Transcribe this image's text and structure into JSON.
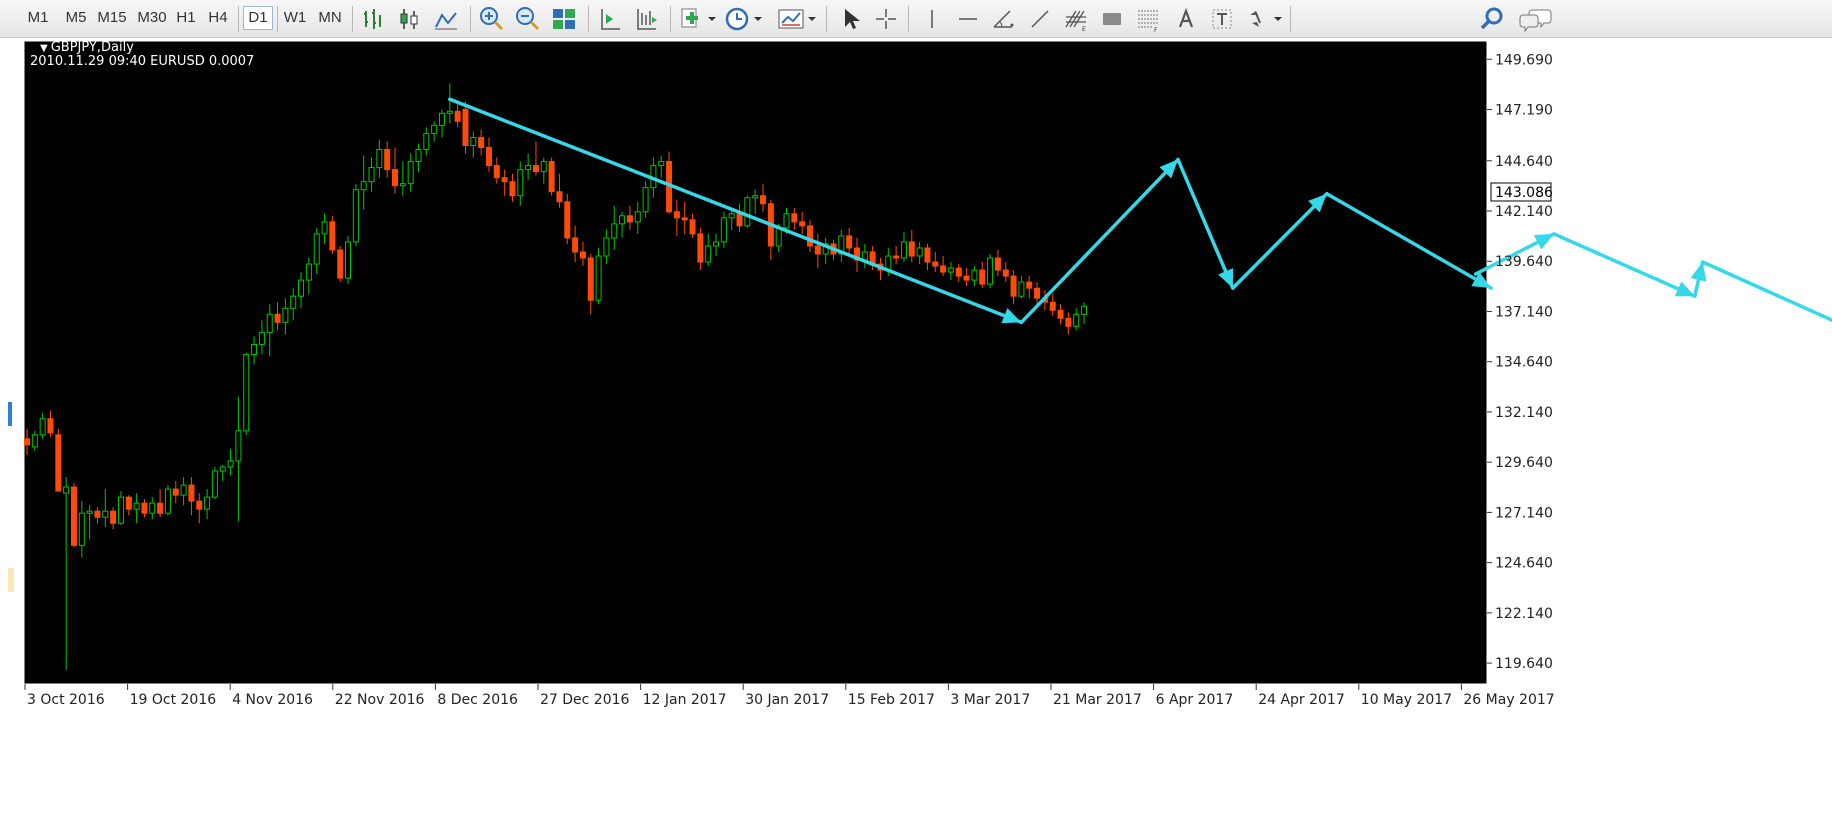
{
  "toolbar": {
    "timeframes": [
      "M1",
      "M5",
      "M15",
      "M30",
      "H1",
      "H4",
      "D1",
      "W1",
      "MN"
    ],
    "active_timeframe": "D1",
    "icons": [
      "bar-chart-icon",
      "candlestick-chart-icon",
      "line-chart-icon",
      "zoom-in-icon",
      "zoom-out-icon",
      "tile-windows-icon",
      "chart-shift-icon",
      "autoscroll-icon",
      "indicators-icon",
      "periodicity-icon",
      "templates-icon",
      "cursor-icon",
      "crosshair-icon",
      "vertical-line-icon",
      "horizontal-line-icon",
      "angle-line-icon",
      "trend-line-icon",
      "fibonacci-icon",
      "rectangle-icon",
      "fibo-channel-icon",
      "text-icon",
      "text-label-icon",
      "arrows-icon",
      "search-icon",
      "chat-icon"
    ]
  },
  "chart": {
    "symbol_label": "GBPJPY,Daily",
    "info_line": "2010.11.29 09:40 EURUSD 0.0007",
    "current_price": "143.086",
    "colors": {
      "background": "#000000",
      "bull": "#00c800",
      "bear": "#ff4a0a",
      "arrows": "#35d8e8",
      "frame": "#ffffff",
      "price_tag_bg": "#ffffff"
    }
  },
  "chart_data": {
    "type": "candlestick",
    "y_ticks": [
      "149.690",
      "147.190",
      "144.640",
      "142.140",
      "139.640",
      "137.140",
      "134.640",
      "132.140",
      "129.640",
      "127.140",
      "124.640",
      "122.140",
      "119.640"
    ],
    "x_ticks": [
      "3 Oct 2016",
      "19 Oct 2016",
      "4 Nov 2016",
      "22 Nov 2016",
      "8 Dec 2016",
      "27 Dec 2016",
      "12 Jan 2017",
      "30 Jan 2017",
      "15 Feb 2017",
      "3 Mar 2017",
      "21 Mar 2017",
      "6 Apr 2017",
      "24 Apr 2017",
      "10 May 2017",
      "26 May 2017"
    ],
    "ylim": [
      118.6,
      150.6
    ],
    "candles": [
      [
        130.8,
        131.3,
        130.0,
        130.5
      ],
      [
        130.4,
        131.2,
        130.2,
        131.0
      ],
      [
        131.0,
        132.1,
        130.8,
        131.8
      ],
      [
        131.8,
        132.2,
        130.9,
        131.1
      ],
      [
        131.0,
        131.3,
        128.2,
        128.2
      ],
      [
        128.1,
        128.9,
        119.3,
        128.4
      ],
      [
        128.4,
        128.6,
        125.4,
        125.5
      ],
      [
        125.5,
        127.7,
        124.9,
        127.1
      ],
      [
        127.1,
        127.5,
        125.8,
        127.2
      ],
      [
        127.2,
        127.4,
        126.6,
        126.9
      ],
      [
        126.9,
        128.3,
        126.4,
        127.2
      ],
      [
        127.2,
        127.4,
        126.3,
        126.6
      ],
      [
        126.6,
        128.2,
        126.5,
        127.9
      ],
      [
        127.9,
        128.0,
        127.0,
        127.3
      ],
      [
        127.3,
        128.1,
        126.6,
        127.6
      ],
      [
        127.6,
        127.8,
        126.9,
        127.1
      ],
      [
        127.1,
        127.9,
        126.8,
        127.6
      ],
      [
        127.6,
        128.3,
        126.9,
        127.1
      ],
      [
        127.1,
        128.5,
        127.0,
        128.3
      ],
      [
        128.3,
        128.7,
        127.6,
        128.0
      ],
      [
        128.0,
        128.9,
        127.5,
        128.5
      ],
      [
        128.5,
        128.9,
        127.0,
        127.7
      ],
      [
        127.7,
        128.1,
        126.6,
        127.3
      ],
      [
        127.3,
        128.3,
        126.8,
        127.9
      ],
      [
        127.9,
        129.4,
        127.8,
        129.2
      ],
      [
        129.2,
        129.5,
        128.7,
        129.4
      ],
      [
        129.4,
        130.3,
        129.0,
        129.7
      ],
      [
        129.7,
        132.9,
        126.7,
        131.2
      ],
      [
        131.2,
        135.1,
        131.0,
        135.0
      ],
      [
        135.0,
        135.9,
        134.5,
        135.5
      ],
      [
        135.5,
        136.7,
        135.0,
        136.1
      ],
      [
        136.1,
        137.5,
        134.9,
        137.0
      ],
      [
        137.0,
        137.6,
        136.2,
        136.6
      ],
      [
        136.6,
        137.8,
        136.0,
        137.3
      ],
      [
        137.3,
        138.3,
        136.7,
        137.9
      ],
      [
        137.9,
        139.1,
        137.3,
        138.7
      ],
      [
        138.7,
        139.8,
        138.0,
        139.5
      ],
      [
        139.5,
        141.3,
        139.0,
        141.0
      ],
      [
        141.0,
        142.0,
        140.5,
        141.6
      ],
      [
        141.6,
        141.9,
        140.0,
        140.2
      ],
      [
        140.2,
        140.4,
        138.6,
        138.8
      ],
      [
        138.8,
        140.9,
        138.5,
        140.6
      ],
      [
        140.6,
        143.5,
        140.4,
        143.2
      ],
      [
        143.2,
        144.9,
        142.2,
        143.6
      ],
      [
        143.6,
        144.8,
        143.1,
        144.3
      ],
      [
        144.3,
        145.7,
        143.8,
        145.2
      ],
      [
        145.2,
        145.6,
        143.8,
        144.2
      ],
      [
        144.2,
        145.3,
        143.0,
        143.4
      ],
      [
        143.4,
        144.6,
        142.9,
        143.5
      ],
      [
        143.5,
        145.0,
        143.1,
        144.6
      ],
      [
        144.6,
        145.5,
        144.1,
        145.2
      ],
      [
        145.2,
        146.3,
        144.9,
        146.0
      ],
      [
        146.0,
        146.6,
        145.6,
        146.4
      ],
      [
        146.4,
        147.2,
        145.8,
        147.0
      ],
      [
        147.0,
        148.5,
        146.5,
        147.1
      ],
      [
        147.1,
        147.5,
        146.3,
        146.6
      ],
      [
        147.2,
        147.6,
        145.0,
        145.4
      ],
      [
        145.4,
        146.1,
        144.8,
        145.8
      ],
      [
        145.8,
        146.2,
        144.9,
        145.3
      ],
      [
        145.3,
        145.8,
        144.1,
        144.4
      ],
      [
        144.4,
        144.8,
        143.5,
        143.8
      ],
      [
        143.8,
        144.2,
        142.9,
        143.6
      ],
      [
        143.6,
        144.0,
        142.6,
        142.9
      ],
      [
        142.9,
        144.6,
        142.4,
        144.2
      ],
      [
        144.2,
        145.0,
        143.7,
        144.4
      ],
      [
        144.4,
        145.6,
        143.9,
        144.1
      ],
      [
        144.1,
        144.8,
        143.5,
        144.6
      ],
      [
        144.6,
        144.8,
        142.9,
        143.1
      ],
      [
        143.1,
        144.0,
        142.3,
        142.6
      ],
      [
        142.6,
        143.0,
        140.5,
        140.8
      ],
      [
        140.8,
        141.4,
        139.6,
        140.1
      ],
      [
        140.1,
        140.6,
        139.4,
        139.8
      ],
      [
        139.8,
        140.0,
        137.0,
        137.7
      ],
      [
        137.7,
        140.3,
        137.5,
        139.9
      ],
      [
        139.9,
        141.2,
        139.5,
        140.8
      ],
      [
        140.8,
        142.4,
        140.2,
        141.5
      ],
      [
        141.5,
        142.1,
        140.8,
        141.9
      ],
      [
        141.9,
        142.4,
        141.2,
        141.6
      ],
      [
        141.6,
        142.6,
        141.0,
        142.1
      ],
      [
        142.1,
        143.6,
        141.8,
        143.3
      ],
      [
        143.3,
        144.8,
        142.8,
        144.4
      ],
      [
        144.4,
        144.9,
        143.8,
        144.6
      ],
      [
        144.6,
        145.1,
        142.0,
        142.1
      ],
      [
        142.1,
        142.7,
        140.9,
        141.8
      ],
      [
        141.8,
        142.6,
        141.0,
        141.7
      ],
      [
        141.7,
        142.0,
        140.8,
        141.0
      ],
      [
        141.0,
        141.3,
        139.2,
        139.6
      ],
      [
        139.6,
        141.0,
        139.4,
        140.4
      ],
      [
        140.4,
        141.0,
        139.9,
        140.6
      ],
      [
        140.6,
        142.1,
        140.3,
        141.8
      ],
      [
        141.8,
        142.2,
        141.2,
        142.0
      ],
      [
        142.0,
        142.5,
        141.1,
        141.4
      ],
      [
        141.4,
        142.9,
        141.3,
        142.8
      ],
      [
        142.8,
        143.2,
        142.0,
        142.9
      ],
      [
        142.9,
        143.5,
        142.1,
        142.5
      ],
      [
        142.5,
        142.7,
        139.7,
        140.4
      ],
      [
        140.4,
        141.5,
        140.1,
        141.3
      ],
      [
        141.3,
        142.3,
        141.0,
        142.0
      ],
      [
        142.0,
        142.3,
        141.2,
        141.6
      ],
      [
        141.6,
        142.1,
        141.0,
        141.4
      ],
      [
        141.4,
        141.7,
        140.1,
        140.4
      ],
      [
        140.4,
        141.0,
        139.3,
        140.0
      ],
      [
        140.0,
        140.8,
        139.5,
        140.5
      ],
      [
        140.5,
        140.7,
        139.7,
        140.0
      ],
      [
        140.0,
        141.2,
        139.6,
        140.9
      ],
      [
        140.9,
        141.3,
        139.9,
        140.3
      ],
      [
        140.3,
        140.8,
        139.1,
        139.7
      ],
      [
        139.7,
        140.5,
        139.3,
        140.1
      ],
      [
        140.1,
        140.4,
        139.2,
        139.5
      ],
      [
        139.5,
        139.8,
        138.7,
        139.2
      ],
      [
        139.2,
        140.3,
        138.9,
        139.9
      ],
      [
        139.9,
        140.4,
        139.5,
        139.8
      ],
      [
        139.8,
        141.1,
        139.6,
        140.6
      ],
      [
        140.6,
        141.2,
        139.6,
        139.9
      ],
      [
        139.9,
        140.6,
        139.5,
        140.3
      ],
      [
        140.3,
        140.5,
        139.2,
        139.6
      ],
      [
        139.6,
        140.1,
        139.1,
        139.4
      ],
      [
        139.4,
        139.9,
        138.9,
        139.1
      ],
      [
        139.1,
        139.6,
        138.7,
        139.3
      ],
      [
        139.3,
        139.5,
        138.6,
        138.9
      ],
      [
        138.9,
        139.3,
        138.4,
        138.7
      ],
      [
        138.7,
        139.4,
        138.4,
        139.2
      ],
      [
        139.2,
        139.6,
        138.3,
        138.5
      ],
      [
        138.5,
        140.0,
        138.3,
        139.8
      ],
      [
        139.8,
        140.2,
        138.9,
        139.2
      ],
      [
        139.2,
        139.6,
        138.6,
        138.9
      ],
      [
        138.9,
        139.2,
        137.5,
        137.9
      ],
      [
        137.9,
        138.9,
        137.8,
        138.6
      ],
      [
        138.6,
        138.9,
        137.8,
        138.3
      ],
      [
        138.3,
        138.6,
        137.5,
        137.8
      ],
      [
        137.8,
        138.2,
        137.2,
        137.6
      ],
      [
        137.6,
        138.0,
        136.9,
        137.2
      ],
      [
        137.2,
        137.5,
        136.5,
        136.8
      ],
      [
        136.8,
        137.1,
        136.0,
        136.4
      ],
      [
        136.4,
        137.3,
        136.2,
        137.0
      ],
      [
        137.0,
        137.6,
        136.5,
        137.4
      ]
    ],
    "arrows": [
      [
        [
          147.7,
          54
        ],
        [
          136.6,
          127
        ]
      ],
      [
        [
          136.6,
          127
        ],
        [
          144.7,
          147
        ]
      ],
      [
        [
          144.7,
          147
        ],
        [
          138.3,
          154
        ]
      ],
      [
        [
          138.3,
          154
        ],
        [
          143.0,
          166
        ]
      ],
      [
        [
          143.0,
          166
        ],
        [
          138.3,
          187
        ]
      ],
      [
        [
          139.0,
          185
        ],
        [
          141.0,
          195
        ]
      ],
      [
        [
          141.0,
          195
        ],
        [
          137.9,
          213
        ]
      ],
      [
        [
          137.9,
          213
        ],
        [
          139.6,
          214
        ]
      ],
      [
        [
          139.6,
          214
        ],
        [
          136.1,
          234
        ]
      ]
    ]
  }
}
